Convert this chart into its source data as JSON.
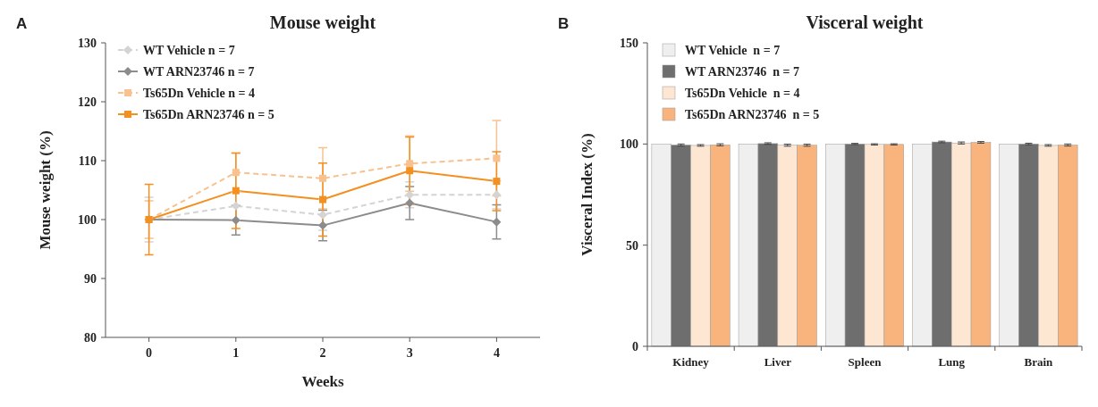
{
  "chart_data": [
    {
      "type": "line",
      "title": "Mouse weight",
      "xlabel": "Weeks",
      "ylabel": "Mouse weight (%)",
      "annotations": [
        "A"
      ],
      "x": [
        0,
        1,
        2,
        3,
        4
      ],
      "xlim": [
        -0.5,
        4.5
      ],
      "xticks": [
        0,
        1,
        2,
        3,
        4
      ],
      "ylim": [
        80,
        130
      ],
      "yticks": [
        80,
        90,
        100,
        110,
        120,
        130
      ],
      "grid": false,
      "legend": "top left",
      "series": [
        {
          "name": "WT Vehicle n = 7",
          "color": "#d4d4d4",
          "line_style": "dashed",
          "marker": "diamond",
          "values": [
            100,
            102.3,
            100.8,
            104.2,
            104.2
          ],
          "errors": [
            3.8,
            2.4,
            2.6,
            2.2,
            2.4
          ]
        },
        {
          "name": "WT ARN23746 n = 7",
          "color": "#8c8c8c",
          "line_style": "solid",
          "marker": "diamond",
          "values": [
            100,
            99.9,
            99,
            102.8,
            99.6
          ],
          "errors": [
            null,
            2.5,
            2.6,
            2.8,
            2.9
          ]
        },
        {
          "name": "Ts65Dn Vehicle n = 4",
          "color": "#f8c18e",
          "line_style": "dashed",
          "marker": "square",
          "values": [
            100,
            108,
            107,
            109.5,
            110.4
          ],
          "errors": [
            3.2,
            3.3,
            5.2,
            4.7,
            6.4
          ]
        },
        {
          "name": "Ts65Dn ARN23746 n = 5",
          "color": "#f39020",
          "line_style": "solid",
          "marker": "square",
          "values": [
            100,
            104.9,
            103.4,
            108.3,
            106.5
          ],
          "errors": [
            6,
            6.4,
            6.2,
            5.7,
            5
          ]
        }
      ]
    },
    {
      "type": "bar",
      "title": "Visceral weight",
      "ylabel": "Visceral Index (%)",
      "annotations": [
        "B"
      ],
      "categories": [
        "Kidney",
        "Liver",
        "Spleen",
        "Lung",
        "Brain"
      ],
      "ylim": [
        0,
        150
      ],
      "yticks": [
        0,
        50,
        100,
        150
      ],
      "grid": false,
      "legend": "top left",
      "series": [
        {
          "name": "WT Vehicle  n = 7",
          "color": "#efefef",
          "values": [
            100,
            100,
            100,
            100,
            100
          ]
        },
        {
          "name": "WT ARN23746  n = 7",
          "color": "#6e6e6e",
          "values": [
            99.5,
            100.2,
            100,
            101,
            100
          ],
          "errors": [
            0.5,
            0.4,
            0.3,
            0.4,
            0.4
          ]
        },
        {
          "name": "Ts65Dn Vehicle  n = 4",
          "color": "#fde6d2",
          "values": [
            99.3,
            99.4,
            99.8,
            100.5,
            99.3
          ],
          "errors": [
            0.4,
            0.5,
            0.3,
            0.5,
            0.4
          ]
        },
        {
          "name": "Ts65Dn ARN23746  n = 5",
          "color": "#f8b47c",
          "values": [
            99.6,
            99.4,
            99.8,
            100.8,
            99.5
          ],
          "errors": [
            0.5,
            0.5,
            0.3,
            0.4,
            0.5
          ]
        }
      ]
    }
  ]
}
